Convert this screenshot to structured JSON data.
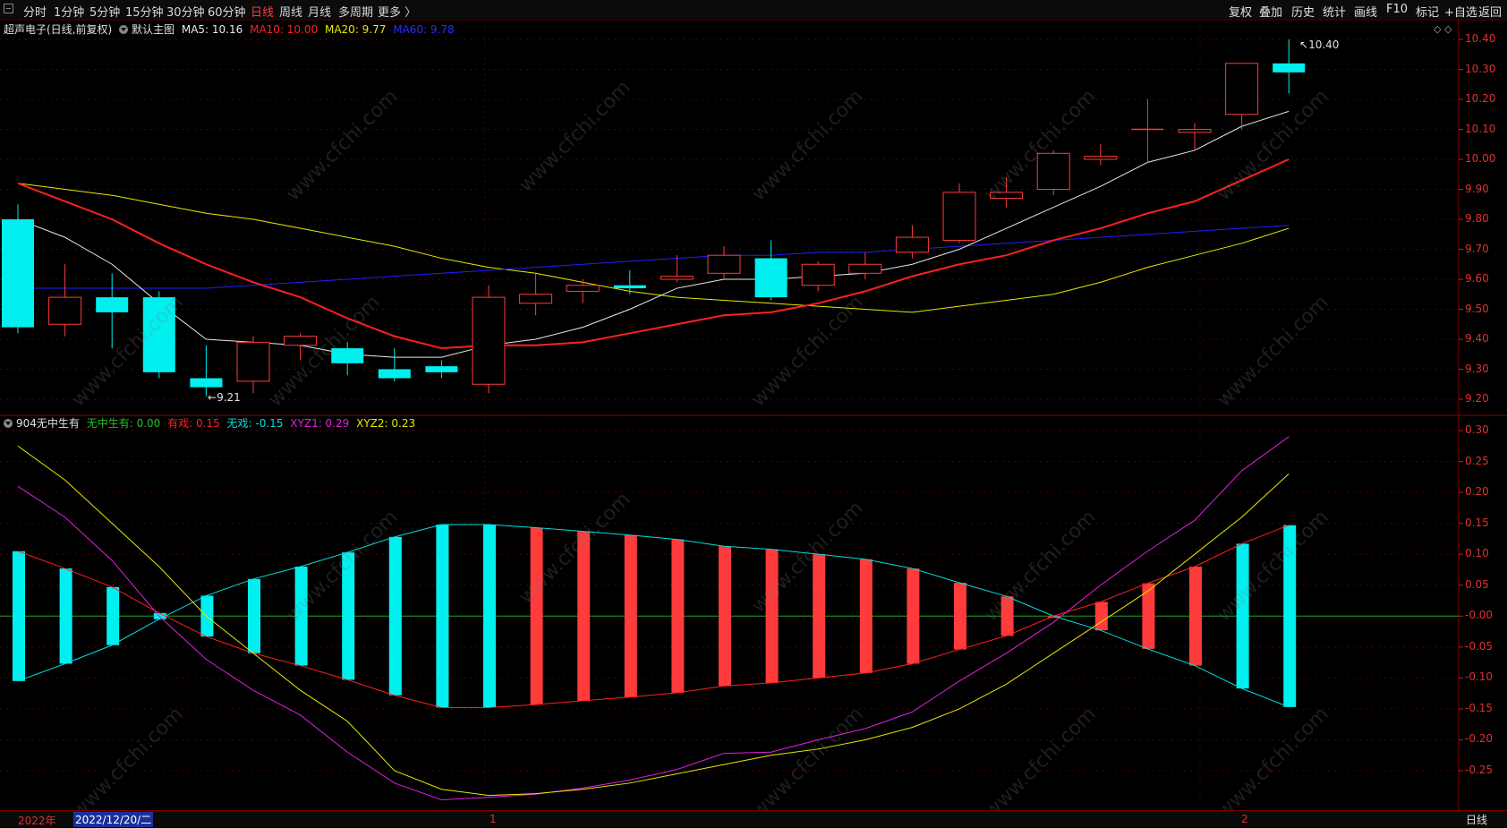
{
  "toolbar": {
    "periods": [
      "分时",
      "1分钟",
      "5分钟",
      "15分钟",
      "30分钟",
      "60分钟",
      "日线",
      "周线",
      "月线",
      "多周期",
      "更多 〉"
    ],
    "active_period": "日线",
    "right_buttons": [
      "复权",
      "叠加",
      "历史",
      "统计",
      "画线",
      "F10",
      "标记",
      "+自选",
      "返回"
    ]
  },
  "main_info": {
    "stock": "超声电子(日线,前复权)",
    "template": "默认主图",
    "ma5": "MA5: 10.16",
    "ma10": "MA10: 10.00",
    "ma20": "MA20: 9.77",
    "ma60": "MA60: 9.78"
  },
  "indicator_info": {
    "name": "904无中生有",
    "l1": "无中生有: 0.00",
    "l2": "有戏: 0.15",
    "l3": "无戏: -0.15",
    "l4": "XYZ1: 0.29",
    "l5": "XYZ2: 0.23"
  },
  "price_axis_labels": [
    "10.40",
    "10.30",
    "10.20",
    "10.10",
    "10.00",
    "9.90",
    "9.80",
    "9.70",
    "9.60",
    "9.50",
    "9.40",
    "9.30",
    "9.20"
  ],
  "indicator_axis_labels": [
    "0.30",
    "0.25",
    "0.20",
    "0.15",
    "0.10",
    "0.05",
    "-0.00",
    "-0.05",
    "-0.10",
    "-0.15",
    "-0.20",
    "-0.25"
  ],
  "annotations": {
    "high": "10.40",
    "low": "9.21"
  },
  "bottom": {
    "year": "2022年",
    "cursor_date": "2022/12/20/二",
    "month1": "1",
    "month2": "2",
    "period": "日线"
  },
  "watermark": "www.cfchi.com",
  "colors": {
    "up": "#ff3b3b",
    "down": "#00f0f0",
    "ma5": "#e8e8e8",
    "ma10": "#ff2020",
    "ma20": "#e8e800",
    "ma60": "#2020ff",
    "xyz1": "#e020e0",
    "xyz2": "#e8e800"
  },
  "chart_data": {
    "type": "candlestick",
    "candles": [
      {
        "o": 9.8,
        "c": 9.44,
        "h": 9.85,
        "l": 9.42
      },
      {
        "o": 9.45,
        "c": 9.54,
        "h": 9.65,
        "l": 9.41
      },
      {
        "o": 9.54,
        "c": 9.49,
        "h": 9.62,
        "l": 9.37
      },
      {
        "o": 9.54,
        "c": 9.29,
        "h": 9.56,
        "l": 9.27
      },
      {
        "o": 9.27,
        "c": 9.24,
        "h": 9.38,
        "l": 9.21
      },
      {
        "o": 9.26,
        "c": 9.39,
        "h": 9.41,
        "l": 9.22
      },
      {
        "o": 9.38,
        "c": 9.41,
        "h": 9.42,
        "l": 9.33
      },
      {
        "o": 9.37,
        "c": 9.32,
        "h": 9.39,
        "l": 9.28
      },
      {
        "o": 9.3,
        "c": 9.27,
        "h": 9.37,
        "l": 9.26
      },
      {
        "o": 9.31,
        "c": 9.29,
        "h": 9.33,
        "l": 9.27
      },
      {
        "o": 9.25,
        "c": 9.54,
        "h": 9.58,
        "l": 9.22
      },
      {
        "o": 9.52,
        "c": 9.55,
        "h": 9.62,
        "l": 9.48
      },
      {
        "o": 9.56,
        "c": 9.58,
        "h": 9.6,
        "l": 9.52
      },
      {
        "o": 9.58,
        "c": 9.57,
        "h": 9.63,
        "l": 9.55
      },
      {
        "o": 9.6,
        "c": 9.61,
        "h": 9.68,
        "l": 9.59
      },
      {
        "o": 9.62,
        "c": 9.68,
        "h": 9.71,
        "l": 9.6
      },
      {
        "o": 9.67,
        "c": 9.54,
        "h": 9.73,
        "l": 9.53
      },
      {
        "o": 9.58,
        "c": 9.65,
        "h": 9.66,
        "l": 9.56
      },
      {
        "o": 9.62,
        "c": 9.65,
        "h": 9.69,
        "l": 9.6
      },
      {
        "o": 9.69,
        "c": 9.74,
        "h": 9.78,
        "l": 9.67
      },
      {
        "o": 9.73,
        "c": 9.89,
        "h": 9.92,
        "l": 9.72
      },
      {
        "o": 9.87,
        "c": 9.89,
        "h": 9.94,
        "l": 9.84
      },
      {
        "o": 9.9,
        "c": 10.02,
        "h": 10.03,
        "l": 9.88
      },
      {
        "o": 10.0,
        "c": 10.01,
        "h": 10.05,
        "l": 9.98
      },
      {
        "o": 10.1,
        "c": 10.1,
        "h": 10.2,
        "l": 9.99
      },
      {
        "o": 10.09,
        "c": 10.1,
        "h": 10.12,
        "l": 10.03
      },
      {
        "o": 10.15,
        "c": 10.32,
        "h": 10.32,
        "l": 10.1
      },
      {
        "o": 10.32,
        "c": 10.29,
        "h": 10.4,
        "l": 10.22
      }
    ],
    "ma5": [
      9.8,
      9.74,
      9.65,
      9.52,
      9.4,
      9.39,
      9.38,
      9.35,
      9.34,
      9.34,
      9.38,
      9.4,
      9.44,
      9.5,
      9.57,
      9.6,
      9.6,
      9.61,
      9.62,
      9.65,
      9.7,
      9.77,
      9.84,
      9.91,
      9.99,
      10.03,
      10.11,
      10.16
    ],
    "ma10": [
      9.92,
      9.86,
      9.8,
      9.72,
      9.65,
      9.59,
      9.54,
      9.47,
      9.41,
      9.37,
      9.38,
      9.38,
      9.39,
      9.42,
      9.45,
      9.48,
      9.49,
      9.52,
      9.56,
      9.61,
      9.65,
      9.68,
      9.73,
      9.77,
      9.82,
      9.86,
      9.93,
      10.0
    ],
    "ma20": [
      9.92,
      9.9,
      9.88,
      9.85,
      9.82,
      9.8,
      9.77,
      9.74,
      9.71,
      9.67,
      9.64,
      9.62,
      9.59,
      9.56,
      9.54,
      9.53,
      9.52,
      9.51,
      9.5,
      9.49,
      9.51,
      9.53,
      9.55,
      9.59,
      9.64,
      9.68,
      9.72,
      9.77
    ],
    "ma60": [
      9.57,
      9.57,
      9.57,
      9.57,
      9.57,
      9.58,
      9.59,
      9.6,
      9.61,
      9.62,
      9.63,
      9.64,
      9.65,
      9.66,
      9.67,
      9.68,
      9.68,
      9.69,
      9.69,
      9.7,
      9.71,
      9.72,
      9.73,
      9.74,
      9.75,
      9.76,
      9.77,
      9.78
    ],
    "indicator_bars": [
      -0.105,
      -0.077,
      -0.047,
      -0.005,
      0.033,
      0.06,
      0.08,
      0.103,
      0.128,
      0.148,
      0.148,
      0.143,
      0.137,
      0.131,
      0.124,
      0.113,
      0.108,
      0.1,
      0.092,
      0.077,
      0.054,
      0.032,
      0.0,
      -0.023,
      -0.053,
      -0.08,
      -0.117,
      -0.147
    ],
    "xyz1": [
      0.21,
      0.16,
      0.09,
      0.0,
      -0.07,
      -0.12,
      -0.16,
      -0.22,
      -0.27,
      -0.297,
      -0.293,
      -0.288,
      -0.278,
      -0.265,
      -0.248,
      -0.222,
      -0.22,
      -0.2,
      -0.182,
      -0.155,
      -0.105,
      -0.06,
      -0.01,
      0.05,
      0.105,
      0.155,
      0.235,
      0.29
    ],
    "xyz2": [
      0.275,
      0.22,
      0.15,
      0.08,
      0.0,
      -0.06,
      -0.12,
      -0.17,
      -0.25,
      -0.28,
      -0.29,
      -0.287,
      -0.28,
      -0.27,
      -0.255,
      -0.24,
      -0.225,
      -0.215,
      -0.2,
      -0.18,
      -0.15,
      -0.11,
      -0.06,
      -0.01,
      0.04,
      0.1,
      0.16,
      0.23
    ]
  }
}
